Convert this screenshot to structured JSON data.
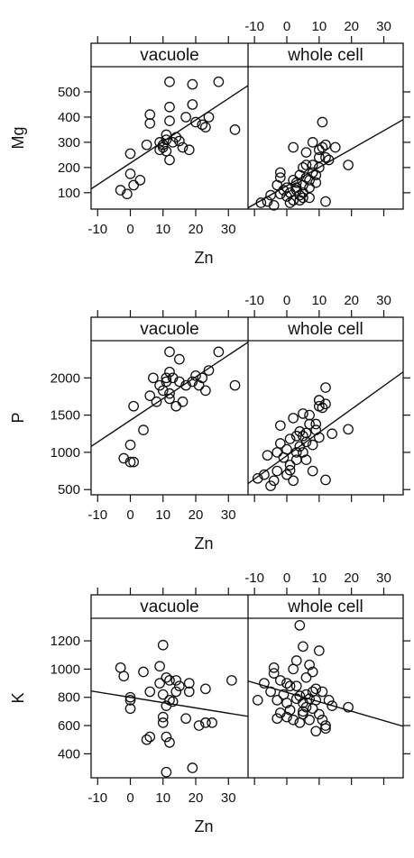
{
  "chart_data": [
    {
      "type": "scatter",
      "ylabel": "Mg",
      "xlabel": "Zn",
      "yticks": [
        100,
        200,
        300,
        400,
        500
      ],
      "ylim": [
        35,
        600
      ],
      "xticks": [
        -10,
        0,
        10,
        20,
        30
      ],
      "xlim": [
        -12,
        36
      ],
      "panels": [
        {
          "strip": "vacuole",
          "fit": [
            [
              -12,
              115
            ],
            [
              36,
              525
            ]
          ],
          "points": [
            [
              -3,
              110
            ],
            [
              -1,
              95
            ],
            [
              0,
              175
            ],
            [
              0,
              255
            ],
            [
              1,
              130
            ],
            [
              3,
              150
            ],
            [
              5,
              290
            ],
            [
              6,
              375
            ],
            [
              6,
              410
            ],
            [
              9,
              270
            ],
            [
              9,
              300
            ],
            [
              10,
              290
            ],
            [
              10,
              280
            ],
            [
              11,
              310
            ],
            [
              11,
              330
            ],
            [
              11,
              265
            ],
            [
              12,
              230
            ],
            [
              12,
              540
            ],
            [
              12,
              440
            ],
            [
              12,
              385
            ],
            [
              13,
              300
            ],
            [
              14,
              320
            ],
            [
              15,
              305
            ],
            [
              16,
              280
            ],
            [
              17,
              400
            ],
            [
              18,
              270
            ],
            [
              19,
              450
            ],
            [
              19,
              530
            ],
            [
              20,
              380
            ],
            [
              22,
              370
            ],
            [
              23,
              360
            ],
            [
              24,
              400
            ],
            [
              27,
              540
            ],
            [
              32,
              350
            ]
          ]
        },
        {
          "strip": "whole cell",
          "fit": [
            [
              -12,
              40
            ],
            [
              36,
              390
            ]
          ],
          "points": [
            [
              -8,
              60
            ],
            [
              -6,
              65
            ],
            [
              -5,
              90
            ],
            [
              -4,
              50
            ],
            [
              -3,
              130
            ],
            [
              -2,
              95
            ],
            [
              -2,
              160
            ],
            [
              -2,
              180
            ],
            [
              -1,
              110
            ],
            [
              0,
              85
            ],
            [
              0,
              120
            ],
            [
              1,
              100
            ],
            [
              1,
              60
            ],
            [
              2,
              70
            ],
            [
              2,
              150
            ],
            [
              2,
              280
            ],
            [
              3,
              120
            ],
            [
              3,
              140
            ],
            [
              3,
              110
            ],
            [
              4,
              90
            ],
            [
              4,
              70
            ],
            [
              4,
              170
            ],
            [
              5,
              130
            ],
            [
              5,
              200
            ],
            [
              5,
              100
            ],
            [
              5,
              80
            ],
            [
              6,
              160
            ],
            [
              6,
              210
            ],
            [
              6,
              260
            ],
            [
              7,
              150
            ],
            [
              7,
              120
            ],
            [
              7,
              80
            ],
            [
              8,
              210
            ],
            [
              8,
              180
            ],
            [
              8,
              300
            ],
            [
              9,
              140
            ],
            [
              9,
              170
            ],
            [
              10,
              240
            ],
            [
              10,
              200
            ],
            [
              10,
              270
            ],
            [
              11,
              280
            ],
            [
              11,
              380
            ],
            [
              12,
              290
            ],
            [
              12,
              240
            ],
            [
              12,
              65
            ],
            [
              13,
              230
            ],
            [
              15,
              280
            ],
            [
              19,
              210
            ]
          ]
        }
      ]
    },
    {
      "type": "scatter",
      "ylabel": "P",
      "xlabel": "Zn",
      "yticks": [
        500,
        1000,
        1500,
        2000
      ],
      "yticklabels": [
        "500",
        "1000",
        "1500",
        "2000"
      ],
      "ylim": [
        430,
        2500
      ],
      "xticks": [
        -10,
        0,
        10,
        20,
        30
      ],
      "xlim": [
        -12,
        36
      ],
      "panels": [
        {
          "strip": "vacuole",
          "fit": [
            [
              -12,
              1080
            ],
            [
              36,
              2480
            ]
          ],
          "points": [
            [
              -2,
              920
            ],
            [
              0,
              870
            ],
            [
              0,
              1100
            ],
            [
              1,
              870
            ],
            [
              1,
              1620
            ],
            [
              4,
              1300
            ],
            [
              6,
              1760
            ],
            [
              7,
              2000
            ],
            [
              8,
              1680
            ],
            [
              9,
              1900
            ],
            [
              10,
              1830
            ],
            [
              11,
              1950
            ],
            [
              11,
              2000
            ],
            [
              12,
              1720
            ],
            [
              12,
              2080
            ],
            [
              12,
              1790
            ],
            [
              12,
              2350
            ],
            [
              13,
              2000
            ],
            [
              14,
              1620
            ],
            [
              15,
              2250
            ],
            [
              15,
              1950
            ],
            [
              16,
              1680
            ],
            [
              17,
              1900
            ],
            [
              19,
              1950
            ],
            [
              20,
              2030
            ],
            [
              21,
              1900
            ],
            [
              22,
              2000
            ],
            [
              23,
              1830
            ],
            [
              24,
              2100
            ],
            [
              27,
              2350
            ],
            [
              32,
              1900
            ]
          ]
        },
        {
          "strip": "whole cell",
          "fit": [
            [
              -12,
              580
            ],
            [
              36,
              2080
            ]
          ],
          "points": [
            [
              -9,
              650
            ],
            [
              -7,
              700
            ],
            [
              -6,
              960
            ],
            [
              -5,
              550
            ],
            [
              -4,
              620
            ],
            [
              -3,
              750
            ],
            [
              -3,
              1000
            ],
            [
              -2,
              1120
            ],
            [
              -2,
              1360
            ],
            [
              -1,
              930
            ],
            [
              0,
              700
            ],
            [
              0,
              1040
            ],
            [
              1,
              830
            ],
            [
              1,
              1180
            ],
            [
              1,
              760
            ],
            [
              2,
              1460
            ],
            [
              2,
              620
            ],
            [
              3,
              1000
            ],
            [
              3,
              1220
            ],
            [
              3,
              900
            ],
            [
              4,
              1280
            ],
            [
              4,
              1080
            ],
            [
              5,
              1220
            ],
            [
              5,
              1520
            ],
            [
              5,
              1000
            ],
            [
              6,
              1260
            ],
            [
              6,
              1140
            ],
            [
              6,
              900
            ],
            [
              7,
              1500
            ],
            [
              7,
              1380
            ],
            [
              8,
              1100
            ],
            [
              8,
              750
            ],
            [
              9,
              1380
            ],
            [
              9,
              1300
            ],
            [
              10,
              1700
            ],
            [
              10,
              1620
            ],
            [
              10,
              1700
            ],
            [
              10,
              1200
            ],
            [
              11,
              1600
            ],
            [
              12,
              1650
            ],
            [
              12,
              1870
            ],
            [
              12,
              630
            ],
            [
              14,
              1250
            ],
            [
              19,
              1310
            ]
          ]
        }
      ]
    },
    {
      "type": "scatter",
      "ylabel": "K",
      "xlabel": "Zn",
      "yticks": [
        400,
        600,
        800,
        1000,
        1200
      ],
      "ylim": [
        230,
        1360
      ],
      "xticks": [
        -10,
        0,
        10,
        20,
        30
      ],
      "xlim": [
        -12,
        36
      ],
      "panels": [
        {
          "strip": "vacuole",
          "fit": [
            [
              -12,
              845
            ],
            [
              36,
              665
            ]
          ],
          "points": [
            [
              -3,
              1010
            ],
            [
              -2,
              950
            ],
            [
              0,
              800
            ],
            [
              0,
              780
            ],
            [
              0,
              720
            ],
            [
              4,
              980
            ],
            [
              5,
              500
            ],
            [
              6,
              520
            ],
            [
              6,
              840
            ],
            [
              9,
              1020
            ],
            [
              9,
              900
            ],
            [
              10,
              1170
            ],
            [
              10,
              820
            ],
            [
              10,
              620
            ],
            [
              10,
              660
            ],
            [
              11,
              740
            ],
            [
              11,
              940
            ],
            [
              11,
              520
            ],
            [
              11,
              270
            ],
            [
              12,
              480
            ],
            [
              12,
              920
            ],
            [
              12,
              780
            ],
            [
              13,
              770
            ],
            [
              14,
              840
            ],
            [
              14,
              920
            ],
            [
              15,
              880
            ],
            [
              17,
              650
            ],
            [
              18,
              900
            ],
            [
              18,
              840
            ],
            [
              19,
              300
            ],
            [
              21,
              600
            ],
            [
              23,
              620
            ],
            [
              23,
              860
            ],
            [
              25,
              620
            ],
            [
              31,
              920
            ]
          ]
        },
        {
          "strip": "whole cell",
          "fit": [
            [
              -12,
              915
            ],
            [
              36,
              595
            ]
          ],
          "points": [
            [
              -9,
              780
            ],
            [
              -7,
              900
            ],
            [
              -5,
              840
            ],
            [
              -4,
              1010
            ],
            [
              -4,
              970
            ],
            [
              -3,
              650
            ],
            [
              -3,
              780
            ],
            [
              -2,
              690
            ],
            [
              -2,
              920
            ],
            [
              -1,
              820
            ],
            [
              0,
              760
            ],
            [
              0,
              900
            ],
            [
              0,
              660
            ],
            [
              1,
              710
            ],
            [
              1,
              880
            ],
            [
              2,
              640
            ],
            [
              2,
              1000
            ],
            [
              3,
              1060
            ],
            [
              3,
              880
            ],
            [
              3,
              790
            ],
            [
              4,
              1310
            ],
            [
              4,
              810
            ],
            [
              4,
              620
            ],
            [
              5,
              700
            ],
            [
              5,
              760
            ],
            [
              5,
              680
            ],
            [
              5,
              1160
            ],
            [
              6,
              730
            ],
            [
              6,
              940
            ],
            [
              6,
              820
            ],
            [
              7,
              640
            ],
            [
              7,
              790
            ],
            [
              7,
              1030
            ],
            [
              8,
              720
            ],
            [
              8,
              980
            ],
            [
              8,
              840
            ],
            [
              9,
              560
            ],
            [
              9,
              780
            ],
            [
              9,
              860
            ],
            [
              10,
              680
            ],
            [
              10,
              1130
            ],
            [
              11,
              640
            ],
            [
              11,
              840
            ],
            [
              12,
              580
            ],
            [
              12,
              600
            ],
            [
              13,
              780
            ],
            [
              14,
              740
            ],
            [
              19,
              730
            ]
          ]
        }
      ]
    }
  ]
}
